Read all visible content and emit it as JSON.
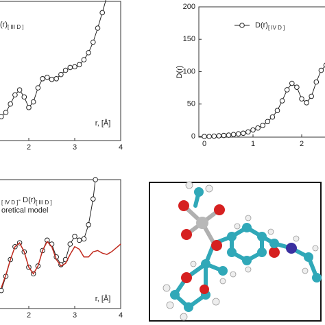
{
  "chart_data": [
    {
      "type": "line",
      "x_label": "r, [Å]",
      "xlim": [
        1,
        4
      ],
      "xticks": [
        2,
        3,
        4
      ],
      "ylim": [
        0,
        200
      ],
      "series": [
        {
          "name": "(r)",
          "subscript": "[ III D ]",
          "marker": "circle",
          "color": "#222222",
          "x": [
            1.4,
            1.5,
            1.6,
            1.7,
            1.8,
            1.9,
            2.0,
            2.1,
            2.2,
            2.3,
            2.4,
            2.5,
            2.6,
            2.7,
            2.8,
            2.9,
            3.0,
            3.1,
            3.2,
            3.3,
            3.4,
            3.5,
            3.6,
            3.7
          ],
          "values": [
            34,
            40,
            52,
            65,
            72,
            62,
            47,
            55,
            75,
            88,
            90,
            87,
            88,
            94,
            100,
            104,
            105,
            108,
            115,
            125,
            140,
            160,
            182,
            205
          ]
        }
      ]
    },
    {
      "type": "line",
      "y_label": "D(r)",
      "xlim": [
        0,
        3
      ],
      "xticks": [
        0,
        1,
        2
      ],
      "ylim": [
        0,
        200
      ],
      "yticks": [
        0,
        50,
        100,
        150,
        200
      ],
      "series": [
        {
          "name": "D(r)",
          "subscript": "[ IV D ]",
          "marker": "circle",
          "color": "#222222",
          "x": [
            0,
            0.1,
            0.2,
            0.3,
            0.4,
            0.5,
            0.6,
            0.7,
            0.8,
            0.9,
            1.0,
            1.1,
            1.2,
            1.3,
            1.4,
            1.5,
            1.6,
            1.7,
            1.8,
            1.9,
            2.0,
            2.1,
            2.2,
            2.3,
            2.4,
            2.5,
            2.6
          ],
          "values": [
            0,
            0,
            0.5,
            1,
            1.5,
            2,
            3,
            4,
            5,
            7,
            10,
            13,
            17,
            23,
            30,
            40,
            55,
            72,
            82,
            76,
            58,
            52,
            62,
            84,
            102,
            110,
            113
          ]
        }
      ]
    },
    {
      "type": "line",
      "x_label": "r, [Å]",
      "xlim": [
        1,
        4
      ],
      "xticks": [
        2,
        3,
        4
      ],
      "ylim": [
        0,
        100
      ],
      "series": [
        {
          "name": "- D(r)",
          "subscript_before": "[ IV D ]",
          "subscript": "[ III D ]",
          "marker": "circle",
          "color": "#222222",
          "x": [
            1.4,
            1.5,
            1.6,
            1.7,
            1.8,
            1.9,
            2.0,
            2.1,
            2.2,
            2.3,
            2.4,
            2.5,
            2.6,
            2.7,
            2.8,
            2.9,
            3.0,
            3.1,
            3.2,
            3.3,
            3.4,
            3.45
          ],
          "values": [
            14,
            25,
            38,
            48,
            51,
            44,
            32,
            27,
            33,
            45,
            53,
            50,
            40,
            34,
            38,
            50,
            56,
            53,
            54,
            65,
            85,
            100
          ]
        },
        {
          "name": "oretical model",
          "marker": "none",
          "color": "#c0281c",
          "x": [
            1.4,
            1.5,
            1.6,
            1.7,
            1.8,
            1.9,
            2.0,
            2.1,
            2.2,
            2.3,
            2.4,
            2.5,
            2.6,
            2.7,
            2.8,
            2.9,
            3.0,
            3.1,
            3.2,
            3.3,
            3.4,
            3.5,
            3.6,
            3.7,
            3.8,
            3.9,
            4.0
          ],
          "values": [
            16,
            26,
            38,
            48,
            51,
            44,
            32,
            27,
            33,
            45,
            52,
            48,
            38,
            33,
            35,
            42,
            48,
            46,
            40,
            40,
            44,
            45,
            43,
            42,
            44,
            47,
            50
          ]
        }
      ]
    }
  ]
}
